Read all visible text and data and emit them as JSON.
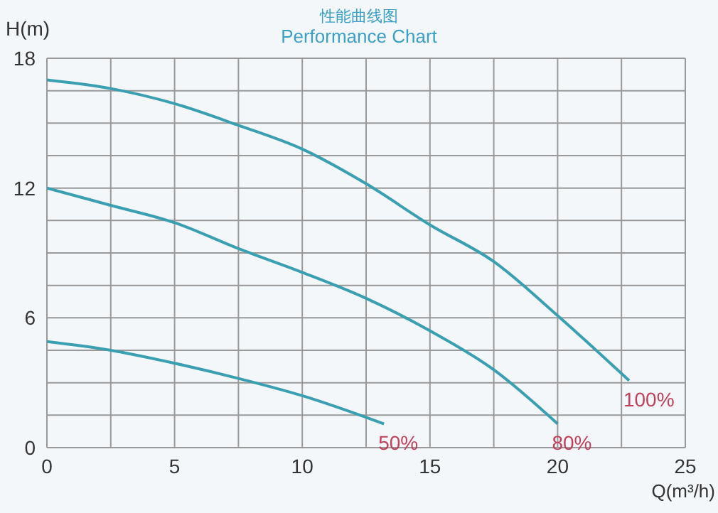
{
  "chart_data": {
    "type": "line",
    "title": "性能曲线图",
    "subtitle": "Performance Chart",
    "xlabel": "Q(m³/h)",
    "ylabel": "H(m)",
    "xlim": [
      0,
      25
    ],
    "ylim": [
      0,
      18
    ],
    "xticks": [
      0,
      {
        "value": 2.5,
        "label": null
      },
      5,
      {
        "value": 7.5,
        "label": null
      },
      10,
      {
        "value": 12.5,
        "label": null
      },
      15,
      {
        "value": 17.5,
        "label": null
      },
      20,
      {
        "value": 22.5,
        "label": null
      },
      25
    ],
    "yticks": [
      0,
      {
        "value": 1.5,
        "label": null
      },
      {
        "value": 3,
        "label": null
      },
      {
        "value": 4.5,
        "label": null
      },
      6,
      {
        "value": 7.5,
        "label": null
      },
      {
        "value": 9,
        "label": null
      },
      {
        "value": 10.5,
        "label": null
      },
      12,
      {
        "value": 13.5,
        "label": null
      },
      {
        "value": 15,
        "label": null
      },
      {
        "value": 16.5,
        "label": null
      },
      18
    ],
    "grid": true,
    "marker": "none",
    "line_style": "solid",
    "series": [
      {
        "name": "100%",
        "color": "#3a9fb0",
        "x": [
          0,
          2.5,
          5,
          7.5,
          10,
          12.5,
          15,
          17.5,
          20,
          22.8
        ],
        "values": [
          17,
          16.6,
          15.9,
          14.9,
          13.8,
          12.2,
          10.3,
          8.6,
          6.1,
          3.1
        ]
      },
      {
        "name": "80%",
        "color": "#3a9fb0",
        "x": [
          0,
          2.5,
          5,
          7.5,
          10,
          12.5,
          15,
          17.5,
          20
        ],
        "values": [
          12,
          11.2,
          10.4,
          9.2,
          8.1,
          6.9,
          5.4,
          3.6,
          1.1
        ]
      },
      {
        "name": "50%",
        "color": "#3a9fb0",
        "x": [
          0,
          2.5,
          5,
          7.5,
          10,
          12.5,
          13.2
        ],
        "values": [
          4.9,
          4.5,
          3.9,
          3.2,
          2.4,
          1.4,
          1.1
        ]
      }
    ]
  }
}
